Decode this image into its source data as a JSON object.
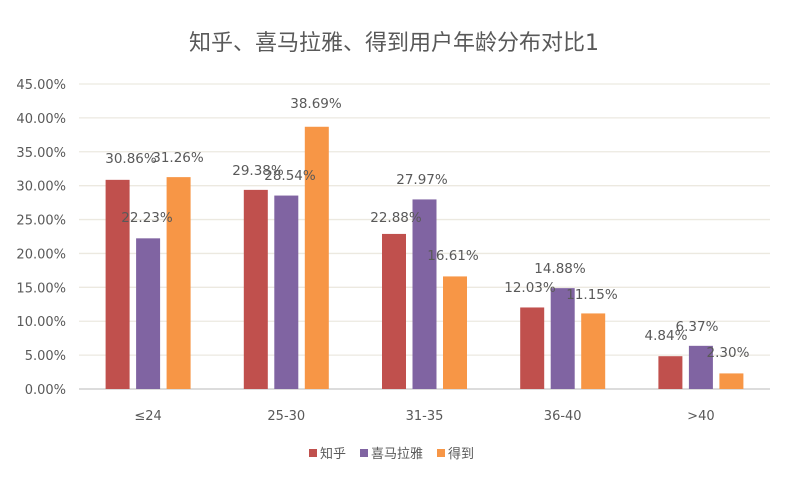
{
  "chart_data": {
    "type": "bar",
    "title": "知乎、喜马拉雅、得到用户年龄分布对比1",
    "categories": [
      "≤24",
      "25-30",
      "31-35",
      "36-40",
      ">40"
    ],
    "series": [
      {
        "name": "知乎",
        "color": "#C0504D",
        "values": [
          30.86,
          29.38,
          22.88,
          12.03,
          4.84
        ],
        "labels": [
          "30.86%",
          "29.38%",
          "22.88%",
          "12.03%",
          "4.84%"
        ]
      },
      {
        "name": "喜马拉雅",
        "color": "#8064A2",
        "values": [
          22.23,
          28.54,
          27.97,
          14.88,
          6.37
        ],
        "labels": [
          "22.23%",
          "28.54%",
          "27.97%",
          "14.88%",
          "6.37%"
        ]
      },
      {
        "name": "得到",
        "color": "#F79646",
        "values": [
          31.26,
          38.69,
          16.61,
          11.15,
          2.3
        ],
        "labels": [
          "31.26%",
          "38.69%",
          "16.61%",
          "11.15%",
          "2.30%"
        ]
      }
    ],
    "ylim": [
      0,
      45
    ],
    "yticks": [
      "0.00%",
      "5.00%",
      "10.00%",
      "15.00%",
      "20.00%",
      "25.00%",
      "30.00%",
      "35.00%",
      "40.00%",
      "45.00%"
    ],
    "grid": true,
    "legend": "bottom"
  }
}
